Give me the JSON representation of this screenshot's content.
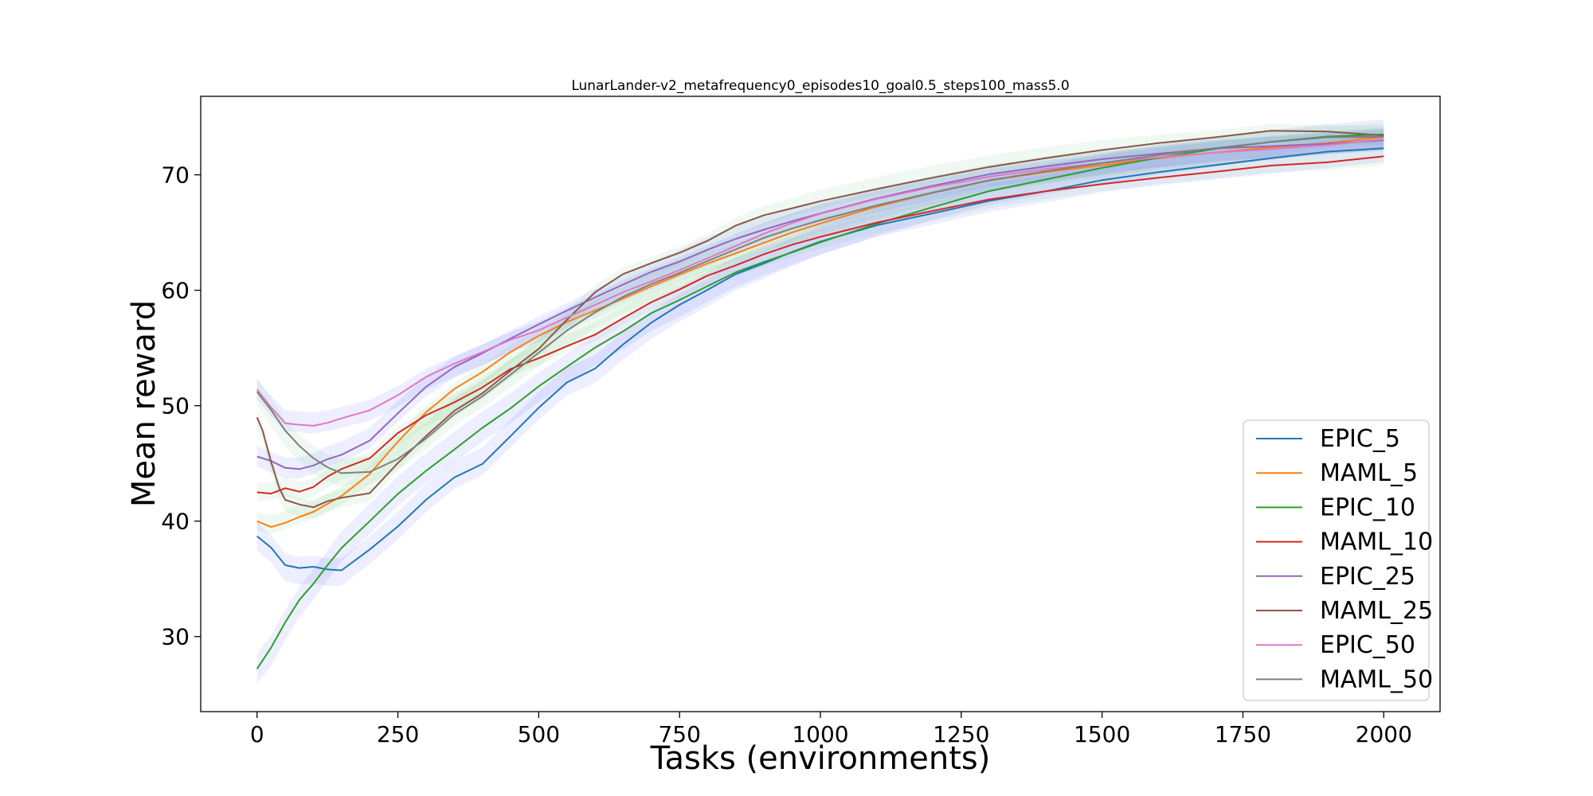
{
  "chart_data": {
    "type": "line",
    "title": "LunarLander-v2_metafrequency0_episodes10_goal0.5_steps100_mass5.0",
    "xlabel": "Tasks (environments)",
    "ylabel": "Mean reward",
    "xlim": [
      -100,
      2100
    ],
    "ylim": [
      23.5,
      76.8
    ],
    "xticks": [
      0,
      250,
      500,
      750,
      1000,
      1250,
      1500,
      1750,
      2000
    ],
    "yticks": [
      30,
      40,
      50,
      60,
      70
    ],
    "grid": false,
    "legend_position": "lower-right",
    "series": [
      {
        "name": "EPIC_5",
        "color": "#1f77b4",
        "band": 1.2,
        "x": [
          0,
          25,
          50,
          75,
          100,
          125,
          150,
          200,
          250,
          300,
          350,
          400,
          450,
          500,
          550,
          600,
          650,
          700,
          750,
          800,
          850,
          900,
          950,
          1000,
          1100,
          1200,
          1300,
          1400,
          1500,
          1600,
          1700,
          1800,
          1900,
          2000
        ],
        "y": [
          38.7,
          37.6,
          36.0,
          35.7,
          35.8,
          35.6,
          35.6,
          37.5,
          39.6,
          42.0,
          44.0,
          45.2,
          47.6,
          50.0,
          52.1,
          53.2,
          55.2,
          57.0,
          58.5,
          59.8,
          61.2,
          62.2,
          63.3,
          64.3,
          65.8,
          66.9,
          68.0,
          68.8,
          69.7,
          70.3,
          70.8,
          71.3,
          71.8,
          72.3
        ]
      },
      {
        "name": "MAML_5",
        "color": "#ff7f0e",
        "band": 0.8,
        "x": [
          0,
          25,
          50,
          75,
          100,
          125,
          150,
          200,
          250,
          300,
          350,
          400,
          450,
          500,
          550,
          600,
          650,
          700,
          750,
          800,
          850,
          900,
          950,
          1000,
          1100,
          1200,
          1300,
          1400,
          1500,
          1600,
          1700,
          1800,
          1900,
          2000
        ],
        "y": [
          40.0,
          39.7,
          40.1,
          40.6,
          41.0,
          41.6,
          42.2,
          44.0,
          46.7,
          49.2,
          51.2,
          52.7,
          54.5,
          56.0,
          57.3,
          58.4,
          59.5,
          60.6,
          61.6,
          62.5,
          63.3,
          64.1,
          64.9,
          65.6,
          67.0,
          68.2,
          69.3,
          70.1,
          70.8,
          71.5,
          72.1,
          72.6,
          73.0,
          73.3
        ]
      },
      {
        "name": "EPIC_10",
        "color": "#2ca02c",
        "band": 1.3,
        "x": [
          0,
          25,
          50,
          75,
          100,
          125,
          150,
          200,
          250,
          300,
          350,
          400,
          450,
          500,
          550,
          600,
          650,
          700,
          750,
          800,
          850,
          900,
          950,
          1000,
          1100,
          1200,
          1300,
          1400,
          1500,
          1600,
          1700,
          1800,
          1900,
          2000
        ],
        "y": [
          27.2,
          28.8,
          31.0,
          33.0,
          34.5,
          36.2,
          37.8,
          40.2,
          42.6,
          44.6,
          46.4,
          48.2,
          49.8,
          51.6,
          53.2,
          54.8,
          56.2,
          57.8,
          59.0,
          60.3,
          61.6,
          62.6,
          63.5,
          64.4,
          66.0,
          67.4,
          68.7,
          69.6,
          70.5,
          71.3,
          72.0,
          72.6,
          73.1,
          73.5
        ]
      },
      {
        "name": "MAML_10",
        "color": "#d62728",
        "band": 0.8,
        "x": [
          0,
          25,
          50,
          75,
          100,
          125,
          150,
          200,
          250,
          300,
          350,
          400,
          450,
          500,
          550,
          600,
          650,
          700,
          750,
          800,
          850,
          900,
          950,
          1000,
          1100,
          1200,
          1300,
          1400,
          1500,
          1600,
          1700,
          1800,
          1900,
          2000
        ],
        "y": [
          42.5,
          42.6,
          43.0,
          42.6,
          42.9,
          43.7,
          44.3,
          45.2,
          47.4,
          49.0,
          50.2,
          51.6,
          53.3,
          54.3,
          55.4,
          56.4,
          57.8,
          59.1,
          60.1,
          61.2,
          62.0,
          62.9,
          63.7,
          64.4,
          65.7,
          66.8,
          67.9,
          68.7,
          69.4,
          70.0,
          70.5,
          71.0,
          71.2,
          71.6
        ]
      },
      {
        "name": "EPIC_25",
        "color": "#9467bd",
        "band": 0.9,
        "x": [
          0,
          25,
          50,
          75,
          100,
          125,
          150,
          200,
          250,
          300,
          350,
          400,
          450,
          500,
          550,
          600,
          650,
          700,
          750,
          800,
          850,
          900,
          950,
          1000,
          1100,
          1200,
          1300,
          1400,
          1500,
          1600,
          1700,
          1800,
          1900,
          2000
        ],
        "y": [
          45.6,
          45.1,
          44.6,
          44.6,
          45.0,
          45.6,
          46.0,
          47.2,
          49.5,
          51.7,
          53.3,
          54.4,
          55.6,
          56.8,
          58.0,
          59.2,
          60.4,
          61.6,
          62.6,
          63.7,
          64.7,
          65.5,
          66.2,
          66.8,
          68.0,
          69.0,
          69.9,
          70.5,
          71.1,
          71.6,
          72.1,
          72.4,
          72.7,
          73.0
        ]
      },
      {
        "name": "MAML_25",
        "color": "#8c564b",
        "band": 0.8,
        "x": [
          0,
          10,
          25,
          40,
          50,
          75,
          100,
          125,
          150,
          200,
          250,
          300,
          350,
          400,
          450,
          500,
          550,
          600,
          650,
          700,
          750,
          800,
          850,
          900,
          950,
          1000,
          1100,
          1200,
          1300,
          1400,
          1500,
          1600,
          1700,
          1800,
          1900,
          2000
        ],
        "y": [
          49.0,
          47.8,
          45.0,
          42.6,
          41.6,
          41.2,
          41.0,
          41.6,
          42.0,
          42.5,
          45.2,
          47.6,
          49.8,
          51.3,
          53.2,
          55.0,
          57.4,
          59.7,
          61.2,
          62.1,
          63.0,
          64.1,
          65.5,
          66.5,
          67.2,
          67.9,
          69.0,
          70.0,
          70.9,
          71.6,
          72.2,
          72.7,
          73.1,
          73.6,
          73.5,
          73.4
        ]
      },
      {
        "name": "EPIC_50",
        "color": "#e377c2",
        "band": 0.9,
        "x": [
          0,
          25,
          50,
          75,
          100,
          125,
          150,
          200,
          250,
          300,
          350,
          400,
          450,
          500,
          550,
          600,
          650,
          700,
          750,
          800,
          850,
          900,
          950,
          1000,
          1100,
          1200,
          1300,
          1400,
          1500,
          1600,
          1700,
          1800,
          1900,
          2000
        ],
        "y": [
          51.4,
          50.0,
          48.7,
          48.6,
          48.5,
          48.7,
          49.0,
          49.6,
          50.8,
          52.3,
          53.4,
          54.4,
          55.5,
          56.4,
          57.6,
          58.8,
          60.0,
          61.0,
          62.0,
          63.0,
          64.0,
          65.0,
          65.8,
          66.5,
          67.7,
          68.7,
          69.6,
          70.3,
          70.9,
          71.5,
          72.0,
          72.4,
          72.8,
          73.1
        ]
      },
      {
        "name": "MAML_50",
        "color": "#7f7f7f",
        "band": 1.2,
        "x": [
          0,
          25,
          50,
          75,
          100,
          125,
          150,
          200,
          250,
          300,
          350,
          400,
          450,
          500,
          550,
          600,
          650,
          700,
          750,
          800,
          850,
          900,
          950,
          1000,
          1100,
          1200,
          1300,
          1400,
          1500,
          1600,
          1700,
          1800,
          1900,
          2000
        ],
        "y": [
          51.2,
          49.4,
          47.6,
          46.3,
          45.3,
          44.6,
          44.2,
          44.4,
          45.6,
          47.4,
          49.5,
          51.0,
          52.8,
          54.6,
          56.4,
          57.9,
          59.2,
          60.3,
          61.3,
          62.4,
          63.5,
          64.6,
          65.5,
          66.3,
          67.6,
          68.7,
          69.7,
          70.4,
          71.0,
          71.6,
          72.1,
          72.6,
          73.0,
          73.3
        ]
      }
    ]
  }
}
